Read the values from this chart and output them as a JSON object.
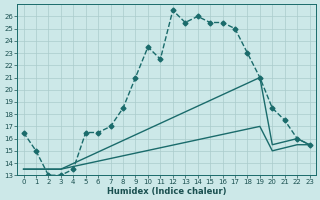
{
  "xlabel": "Humidex (Indice chaleur)",
  "ylabel": "",
  "background_color": "#cce8e8",
  "grid_color": "#aacccc",
  "line_color": "#1a6b6b",
  "ylim": [
    13,
    27
  ],
  "xlim": [
    -0.5,
    23.5
  ],
  "yticks": [
    13,
    14,
    15,
    16,
    17,
    18,
    19,
    20,
    21,
    22,
    23,
    24,
    25,
    26
  ],
  "xticks": [
    0,
    1,
    2,
    3,
    4,
    5,
    6,
    7,
    8,
    9,
    10,
    11,
    12,
    13,
    14,
    15,
    16,
    17,
    18,
    19,
    20,
    21,
    22,
    23
  ],
  "series": [
    {
      "x": [
        0,
        1,
        2,
        3,
        4,
        5,
        6,
        7,
        8,
        9,
        10,
        11,
        12,
        13,
        14,
        15,
        16,
        17,
        18,
        19,
        20,
        21,
        22,
        23
      ],
      "y": [
        16.5,
        15.0,
        13.0,
        13.0,
        13.5,
        16.5,
        16.5,
        17.0,
        18.5,
        21.0,
        23.5,
        22.5,
        26.5,
        25.5,
        26.0,
        25.5,
        25.5,
        25.0,
        23.0,
        21.0,
        18.5,
        17.5,
        16.0,
        15.5
      ],
      "marker": "D",
      "markersize": 2.5,
      "linestyle": "--",
      "linewidth": 1.0
    },
    {
      "x": [
        0,
        3,
        19,
        20,
        22,
        23
      ],
      "y": [
        13.5,
        13.5,
        21.0,
        15.5,
        16.0,
        15.5
      ],
      "marker": null,
      "markersize": 0,
      "linestyle": "-",
      "linewidth": 1.0
    },
    {
      "x": [
        0,
        3,
        19,
        20,
        22,
        23
      ],
      "y": [
        13.5,
        13.5,
        17.0,
        15.0,
        15.5,
        15.5
      ],
      "marker": null,
      "markersize": 0,
      "linestyle": "-",
      "linewidth": 1.0
    }
  ]
}
